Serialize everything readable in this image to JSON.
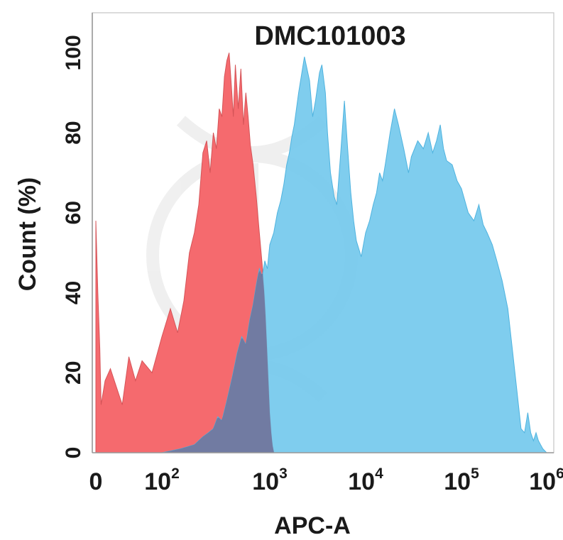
{
  "chart_data": {
    "type": "area",
    "title": "DMC101003",
    "xlabel": "APC-A",
    "ylabel": "Count  (%)",
    "x_scale": "biexponential",
    "xlim": [
      0,
      1000000
    ],
    "ylim": [
      0,
      110
    ],
    "y_ticks": [
      "0",
      "20",
      "40",
      "60",
      "80",
      "100"
    ],
    "x_ticks": [
      {
        "value": 0,
        "base": "0",
        "exp": ""
      },
      {
        "value": 100,
        "base": "10",
        "exp": "2"
      },
      {
        "value": 1000,
        "base": "10",
        "exp": "3"
      },
      {
        "value": 10000,
        "base": "10",
        "exp": "4"
      },
      {
        "value": 100000,
        "base": "10",
        "exp": "5"
      },
      {
        "value": 1000000,
        "base": "10",
        "exp": "6"
      }
    ],
    "grid": false,
    "series": [
      {
        "color": "#f56a6e",
        "points": [
          [
            0,
            58
          ],
          [
            3,
            40
          ],
          [
            6,
            26
          ],
          [
            8,
            12
          ],
          [
            14,
            18
          ],
          [
            22,
            21
          ],
          [
            30,
            17
          ],
          [
            40,
            12
          ],
          [
            50,
            24
          ],
          [
            60,
            18
          ],
          [
            70,
            23
          ],
          [
            85,
            20
          ],
          [
            100,
            29
          ],
          [
            120,
            36
          ],
          [
            140,
            30
          ],
          [
            160,
            38
          ],
          [
            180,
            50
          ],
          [
            200,
            55
          ],
          [
            220,
            62
          ],
          [
            240,
            75
          ],
          [
            260,
            78
          ],
          [
            280,
            70
          ],
          [
            300,
            80
          ],
          [
            320,
            76
          ],
          [
            340,
            86
          ],
          [
            360,
            84
          ],
          [
            380,
            94
          ],
          [
            400,
            98
          ],
          [
            420,
            100
          ],
          [
            440,
            92
          ],
          [
            460,
            84
          ],
          [
            480,
            97
          ],
          [
            510,
            86
          ],
          [
            540,
            96
          ],
          [
            570,
            82
          ],
          [
            600,
            90
          ],
          [
            630,
            84
          ],
          [
            660,
            77
          ],
          [
            700,
            72
          ],
          [
            750,
            64
          ],
          [
            800,
            55
          ],
          [
            850,
            47
          ],
          [
            900,
            38
          ],
          [
            950,
            24
          ],
          [
            1000,
            10
          ],
          [
            1050,
            3
          ],
          [
            1100,
            0
          ]
        ]
      },
      {
        "color": "#71c8ec",
        "points": [
          [
            50,
            0
          ],
          [
            100,
            0
          ],
          [
            150,
            1
          ],
          [
            200,
            2
          ],
          [
            240,
            4
          ],
          [
            270,
            5
          ],
          [
            300,
            6
          ],
          [
            330,
            9
          ],
          [
            360,
            8
          ],
          [
            400,
            13
          ],
          [
            450,
            19
          ],
          [
            500,
            25
          ],
          [
            550,
            29
          ],
          [
            600,
            27
          ],
          [
            650,
            33
          ],
          [
            700,
            37
          ],
          [
            750,
            42
          ],
          [
            800,
            46
          ],
          [
            850,
            44
          ],
          [
            900,
            48
          ],
          [
            950,
            46
          ],
          [
            1000,
            52
          ],
          [
            1100,
            55
          ],
          [
            1200,
            60
          ],
          [
            1300,
            63
          ],
          [
            1400,
            67
          ],
          [
            1500,
            72
          ],
          [
            1600,
            75
          ],
          [
            1700,
            79
          ],
          [
            1800,
            82
          ],
          [
            2000,
            90
          ],
          [
            2300,
            99
          ],
          [
            2600,
            93
          ],
          [
            2800,
            84
          ],
          [
            3000,
            88
          ],
          [
            3300,
            95
          ],
          [
            3500,
            97
          ],
          [
            3800,
            90
          ],
          [
            4000,
            80
          ],
          [
            4300,
            70
          ],
          [
            4700,
            64
          ],
          [
            5000,
            62
          ],
          [
            5500,
            75
          ],
          [
            6000,
            88
          ],
          [
            6500,
            76
          ],
          [
            7000,
            65
          ],
          [
            7500,
            58
          ],
          [
            8000,
            53
          ],
          [
            9000,
            49
          ],
          [
            10000,
            55
          ],
          [
            11000,
            58
          ],
          [
            12000,
            62
          ],
          [
            13000,
            65
          ],
          [
            14000,
            70
          ],
          [
            15000,
            68
          ],
          [
            16000,
            72
          ],
          [
            18000,
            80
          ],
          [
            20000,
            86
          ],
          [
            22000,
            82
          ],
          [
            25000,
            76
          ],
          [
            28000,
            70
          ],
          [
            30000,
            74
          ],
          [
            35000,
            78
          ],
          [
            40000,
            76
          ],
          [
            45000,
            80
          ],
          [
            50000,
            75
          ],
          [
            55000,
            78
          ],
          [
            60000,
            82
          ],
          [
            65000,
            76
          ],
          [
            70000,
            73
          ],
          [
            80000,
            72
          ],
          [
            90000,
            68
          ],
          [
            100000,
            66
          ],
          [
            120000,
            60
          ],
          [
            140000,
            58
          ],
          [
            160000,
            62
          ],
          [
            180000,
            57
          ],
          [
            200000,
            55
          ],
          [
            230000,
            52
          ],
          [
            260000,
            48
          ],
          [
            300000,
            43
          ],
          [
            350000,
            36
          ],
          [
            400000,
            25
          ],
          [
            450000,
            15
          ],
          [
            500000,
            6
          ],
          [
            550000,
            5
          ],
          [
            600000,
            10
          ],
          [
            650000,
            5
          ],
          [
            700000,
            3
          ],
          [
            750000,
            5
          ],
          [
            800000,
            3
          ],
          [
            900000,
            1
          ],
          [
            1000000,
            0
          ]
        ]
      }
    ]
  }
}
